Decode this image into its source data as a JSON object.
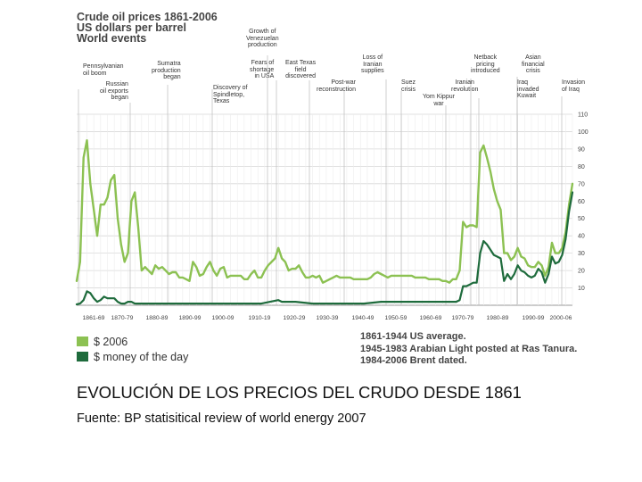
{
  "header": {
    "title_lines": [
      "Crude oil prices 1861-2006",
      "US dollars per barrel",
      "World events"
    ]
  },
  "events": [
    {
      "id": "pennsylvanian",
      "text": "Pennsylvanian\noil boom"
    },
    {
      "id": "russian",
      "text": "Russian\noil exports\nbegan"
    },
    {
      "id": "sumatra",
      "text": "Sumatra\nproduction\nbegan"
    },
    {
      "id": "spindletop",
      "text": "Discovery of\nSpindletop,\nTexas"
    },
    {
      "id": "venezuela",
      "text": "Growth of\nVenezuelan\nproduction"
    },
    {
      "id": "fears",
      "text": "Fears of\nshortage\nin USA"
    },
    {
      "id": "east-texas",
      "text": "East Texas\nfield\ndiscovered"
    },
    {
      "id": "post-war",
      "text": "Post-war\nreconstruction"
    },
    {
      "id": "iranian-supplies",
      "text": "Loss of\nIranian\nsupplies"
    },
    {
      "id": "suez",
      "text": "Suez\ncrisis"
    },
    {
      "id": "yom-kippur",
      "text": "Yom Kippur\nwar"
    },
    {
      "id": "netback",
      "text": "Netback\npricing\nintroduced"
    },
    {
      "id": "iranian-revolution",
      "text": "Iranian\nrevolution"
    },
    {
      "id": "asian-crisis",
      "text": "Asian\nfinancial\ncrisis"
    },
    {
      "id": "iraq-kuwait",
      "text": "Iraq\ninvaded\nKuwait"
    },
    {
      "id": "invasion-iraq",
      "text": "Invasion\nof Iraq"
    }
  ],
  "legend": {
    "items": [
      {
        "label": "$ 2006",
        "color": "#8cc152"
      },
      {
        "label": "$ money of the day",
        "color": "#1e6b3c"
      }
    ]
  },
  "note": {
    "lines": [
      "1861-1944 US average.",
      "1945-1983 Arabian Light posted at Ras Tanura.",
      "1984-2006 Brent dated."
    ]
  },
  "caption": "EVOLUCIÓN DE LOS PRECIOS DEL CRUDO DESDE 1861",
  "source": "Fuente: BP statisitical review of world energy 2007",
  "chart_data": {
    "type": "line",
    "title": "Crude oil prices 1861-2006",
    "ylabel": "US dollars per barrel",
    "ylim": [
      0,
      110
    ],
    "xlim": [
      1861,
      2006
    ],
    "y_ticks": [
      10,
      20,
      30,
      40,
      50,
      60,
      70,
      80,
      90,
      100,
      110
    ],
    "x_ticks": [
      "1861-69",
      "1870-79",
      "1880-89",
      "1890-99",
      "1900-09",
      "1910-19",
      "1920-29",
      "1930-39",
      "1940-49",
      "1950-59",
      "1960-69",
      "1970-79",
      "1980-89",
      "1990-99",
      "2000-06"
    ],
    "grid": true,
    "legend_position": "bottom-left",
    "series": [
      {
        "name": "$ 2006",
        "color": "#8cc152",
        "x": [
          1861,
          1862,
          1863,
          1864,
          1865,
          1866,
          1867,
          1868,
          1869,
          1870,
          1871,
          1872,
          1873,
          1874,
          1875,
          1876,
          1877,
          1878,
          1879,
          1880,
          1881,
          1882,
          1883,
          1884,
          1885,
          1886,
          1887,
          1888,
          1889,
          1890,
          1891,
          1892,
          1893,
          1894,
          1895,
          1896,
          1897,
          1898,
          1899,
          1900,
          1901,
          1902,
          1903,
          1904,
          1905,
          1906,
          1907,
          1908,
          1909,
          1910,
          1911,
          1912,
          1913,
          1914,
          1915,
          1916,
          1917,
          1918,
          1919,
          1920,
          1921,
          1922,
          1923,
          1924,
          1925,
          1926,
          1927,
          1928,
          1929,
          1930,
          1931,
          1932,
          1933,
          1934,
          1935,
          1936,
          1937,
          1938,
          1939,
          1940,
          1941,
          1942,
          1943,
          1944,
          1945,
          1946,
          1947,
          1948,
          1949,
          1950,
          1951,
          1952,
          1953,
          1954,
          1955,
          1956,
          1957,
          1958,
          1959,
          1960,
          1961,
          1962,
          1963,
          1964,
          1965,
          1966,
          1967,
          1968,
          1969,
          1970,
          1971,
          1972,
          1973,
          1974,
          1975,
          1976,
          1977,
          1978,
          1979,
          1980,
          1981,
          1982,
          1983,
          1984,
          1985,
          1986,
          1987,
          1988,
          1989,
          1990,
          1991,
          1992,
          1993,
          1994,
          1995,
          1996,
          1997,
          1998,
          1999,
          2000,
          2001,
          2002,
          2003,
          2004,
          2005,
          2006
        ],
        "values": [
          14,
          25,
          85,
          95,
          70,
          55,
          40,
          58,
          58,
          62,
          72,
          75,
          50,
          35,
          25,
          30,
          60,
          65,
          45,
          20,
          22,
          20,
          18,
          23,
          21,
          22,
          20,
          18,
          19,
          19,
          16,
          16,
          15,
          14,
          25,
          22,
          17,
          18,
          22,
          25,
          20,
          17,
          21,
          22,
          16,
          17,
          17,
          17,
          17,
          15,
          15,
          18,
          20,
          16,
          16,
          20,
          23,
          25,
          27,
          33,
          27,
          25,
          20,
          21,
          21,
          23,
          19,
          16,
          16,
          17,
          16,
          17,
          13,
          14,
          15,
          16,
          17,
          16,
          16,
          16,
          16,
          15,
          15,
          15,
          15,
          15,
          16,
          18,
          19,
          18,
          17,
          16,
          17,
          17,
          17,
          17,
          17,
          17,
          17,
          16,
          16,
          16,
          16,
          15,
          15,
          15,
          15,
          14,
          14,
          13,
          15,
          15,
          20,
          48,
          45,
          46,
          46,
          45,
          88,
          92,
          85,
          77,
          67,
          60,
          55,
          30,
          30,
          26,
          28,
          33,
          28,
          27,
          23,
          22,
          22,
          25,
          23,
          17,
          22,
          36,
          30,
          30,
          33,
          42,
          58,
          70
        ]
      },
      {
        "name": "$ money of the day",
        "color": "#1e6b3c",
        "x": [
          1861,
          1862,
          1863,
          1864,
          1865,
          1866,
          1867,
          1868,
          1869,
          1870,
          1871,
          1872,
          1873,
          1874,
          1875,
          1876,
          1877,
          1878,
          1879,
          1880,
          1890,
          1900,
          1910,
          1915,
          1920,
          1921,
          1922,
          1925,
          1930,
          1935,
          1940,
          1945,
          1950,
          1955,
          1960,
          1965,
          1970,
          1971,
          1972,
          1973,
          1974,
          1975,
          1976,
          1977,
          1978,
          1979,
          1980,
          1981,
          1982,
          1983,
          1984,
          1985,
          1986,
          1987,
          1988,
          1989,
          1990,
          1991,
          1992,
          1993,
          1994,
          1995,
          1996,
          1997,
          1998,
          1999,
          2000,
          2001,
          2002,
          2003,
          2004,
          2005,
          2006
        ],
        "values": [
          0.5,
          1,
          3,
          8,
          7,
          4,
          2,
          3,
          5,
          4,
          4,
          4,
          2,
          1,
          1,
          2,
          2,
          1,
          1,
          1,
          1,
          1,
          1,
          1,
          3,
          2,
          2,
          2,
          1,
          1,
          1,
          1,
          2,
          2,
          2,
          2,
          2,
          2,
          2,
          3,
          11,
          11,
          12,
          13,
          13,
          30,
          37,
          35,
          32,
          29,
          28,
          27,
          14,
          18,
          15,
          18,
          23,
          20,
          19,
          17,
          16,
          17,
          21,
          19,
          13,
          18,
          28,
          24,
          25,
          29,
          38,
          54,
          65
        ]
      }
    ]
  }
}
